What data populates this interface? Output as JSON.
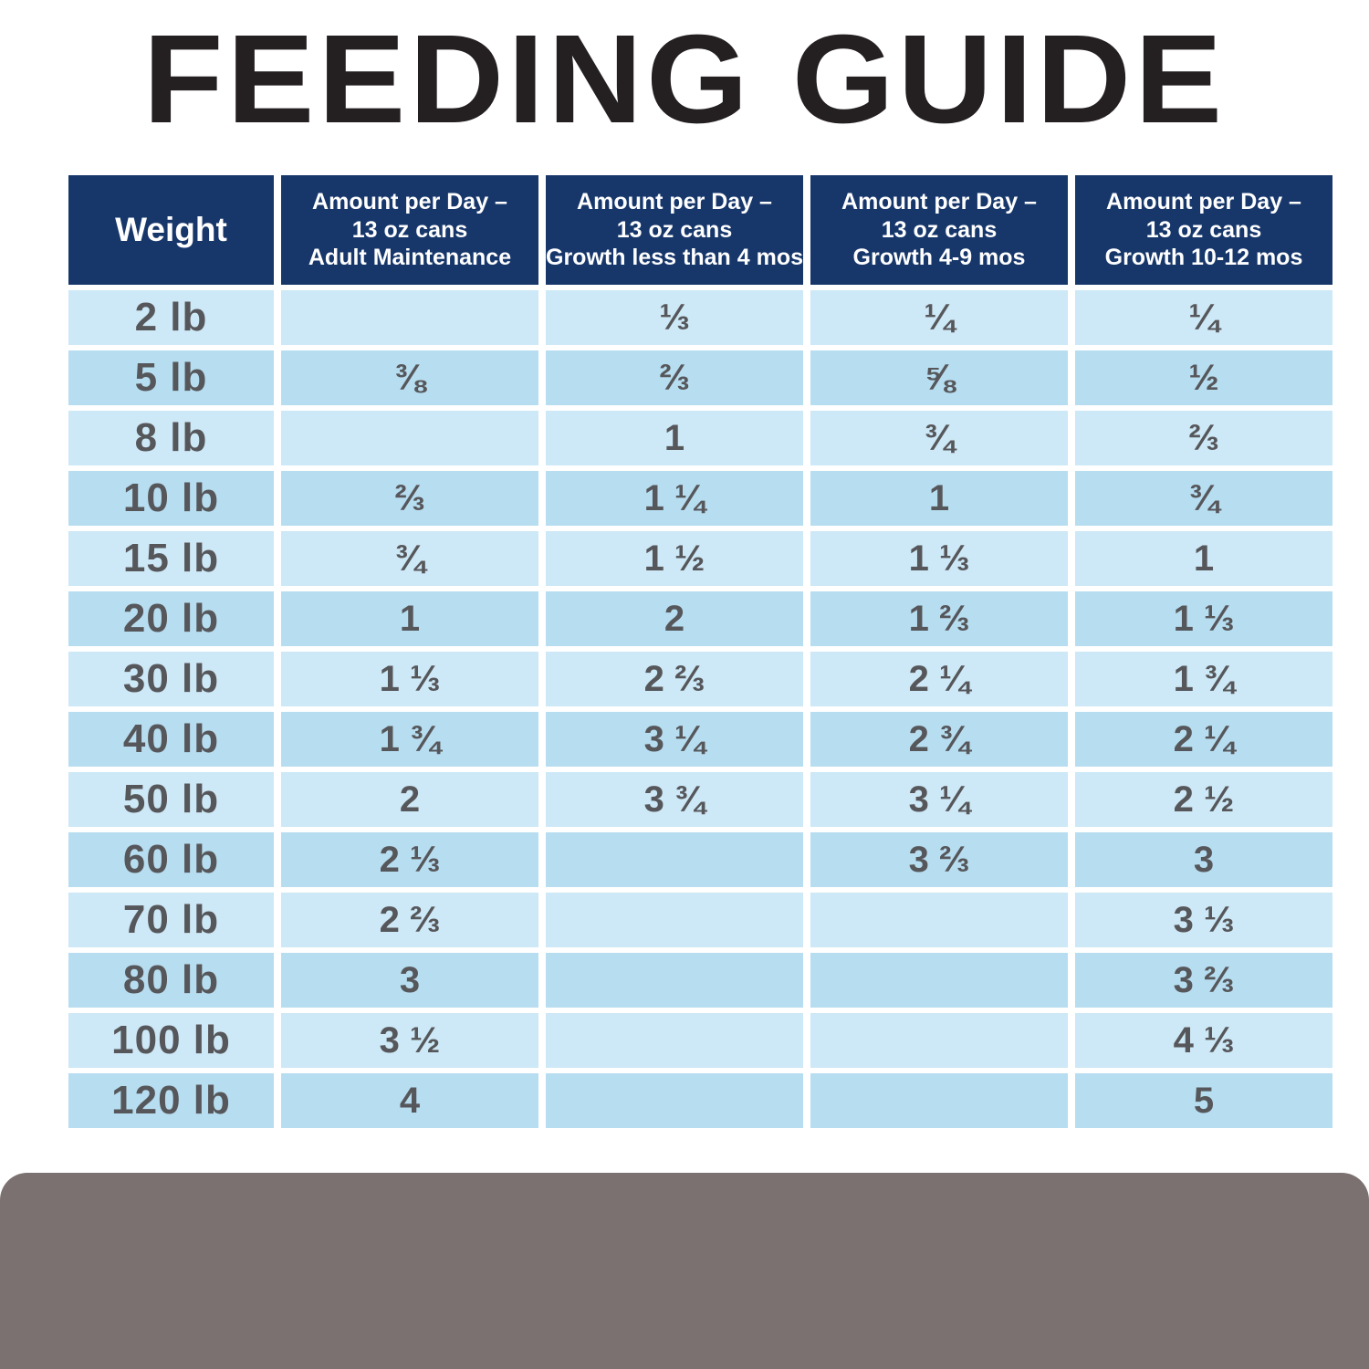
{
  "title": "FEEDING GUIDE",
  "colors": {
    "header_bg": "#17376b",
    "row_light": "#cde8f6",
    "row_dark": "#b7ddf0",
    "body_text": "#56575b",
    "header_text": "#ffffff",
    "title_text": "#241f21",
    "footer_bar": "#7a7170"
  },
  "chart_data": {
    "type": "table",
    "title": "FEEDING GUIDE",
    "columns": [
      "Weight",
      "Amount per Day – 13 oz cans Adult Maintenance",
      "Amount per Day – 13 oz cans Growth less than 4 mos",
      "Amount per Day – 13 oz cans Growth 4-9 mos",
      "Amount per Day – 13 oz cans Growth 10-12 mos"
    ],
    "header_lines": [
      [
        "Weight"
      ],
      [
        "Amount per Day –",
        "13 oz cans",
        "Adult Maintenance"
      ],
      [
        "Amount per Day –",
        "13 oz cans",
        "Growth less than 4 mos"
      ],
      [
        "Amount per Day –",
        "13 oz cans",
        "Growth 4-9 mos"
      ],
      [
        "Amount per Day –",
        "13 oz cans",
        "Growth 10-12 mos"
      ]
    ],
    "rows": [
      {
        "weight": "2 lb",
        "values": [
          "",
          "⅓",
          "¼",
          "¼"
        ]
      },
      {
        "weight": "5 lb",
        "values": [
          "⅜",
          "⅔",
          "⅝",
          "½"
        ]
      },
      {
        "weight": "8 lb",
        "values": [
          "",
          "1",
          "¾",
          "⅔"
        ]
      },
      {
        "weight": "10 lb",
        "values": [
          "⅔",
          "1 ¼",
          "1",
          "¾"
        ]
      },
      {
        "weight": "15 lb",
        "values": [
          "¾",
          "1 ½",
          "1 ⅓",
          "1"
        ]
      },
      {
        "weight": "20 lb",
        "values": [
          "1",
          "2",
          "1 ⅔",
          "1 ⅓"
        ]
      },
      {
        "weight": "30 lb",
        "values": [
          "1 ⅓",
          "2 ⅔",
          "2 ¼",
          "1 ¾"
        ]
      },
      {
        "weight": "40 lb",
        "values": [
          "1 ¾",
          "3 ¼",
          "2 ¾",
          "2 ¼"
        ]
      },
      {
        "weight": "50 lb",
        "values": [
          "2",
          "3 ¾",
          "3 ¼",
          "2 ½"
        ]
      },
      {
        "weight": "60 lb",
        "values": [
          "2 ⅓",
          "",
          "3 ⅔",
          "3"
        ]
      },
      {
        "weight": "70 lb",
        "values": [
          "2 ⅔",
          "",
          "",
          "3 ⅓"
        ]
      },
      {
        "weight": "80 lb",
        "values": [
          "3",
          "",
          "",
          "3 ⅔"
        ]
      },
      {
        "weight": "100 lb",
        "values": [
          "3 ½",
          "",
          "",
          "4 ⅓"
        ]
      },
      {
        "weight": "120 lb",
        "values": [
          "4",
          "",
          "",
          "5"
        ]
      }
    ]
  }
}
